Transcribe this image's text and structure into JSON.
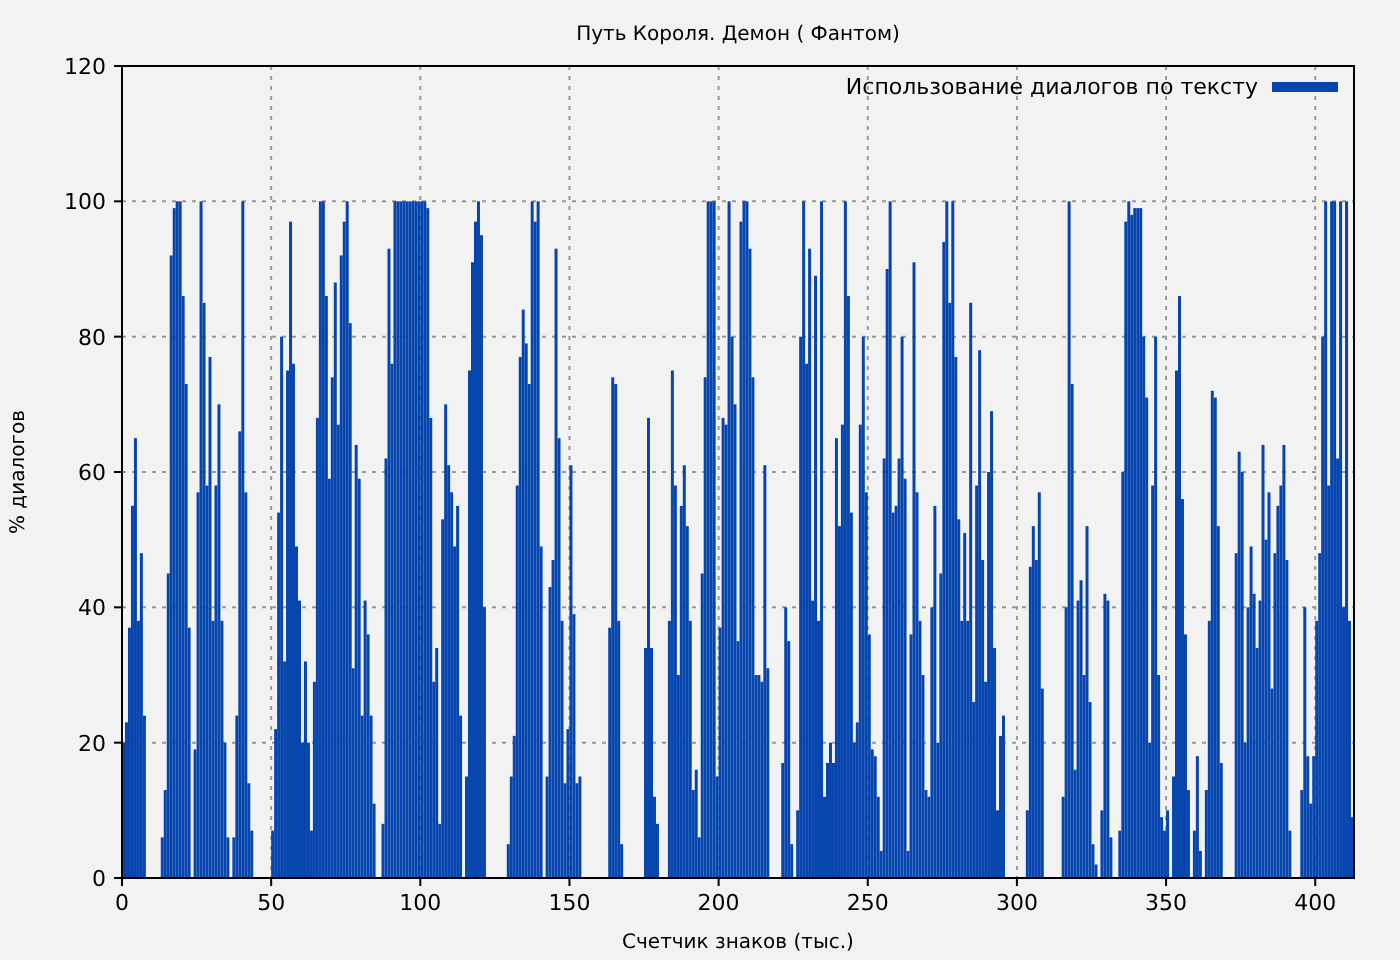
{
  "chart_data": {
    "type": "bar",
    "title": "Путь Короля. Демон ( Фантом)",
    "xlabel": "Счетчик знаков (тыс.)",
    "ylabel": "% диалогов",
    "x": [
      0,
      1,
      2,
      3,
      4,
      5,
      6,
      7,
      8,
      9,
      10,
      11,
      12,
      13,
      14,
      15,
      16,
      17,
      18,
      19,
      20,
      21,
      22,
      23,
      24,
      25,
      26,
      27,
      28,
      29,
      30,
      31,
      32,
      33,
      34,
      35,
      36,
      37,
      38,
      39,
      40,
      41,
      42,
      43,
      44,
      45,
      46,
      47,
      48,
      49,
      50,
      51,
      52,
      53,
      54,
      55,
      56,
      57,
      58,
      59,
      60,
      61,
      62,
      63,
      64,
      65,
      66,
      67,
      68,
      69,
      70,
      71,
      72,
      73,
      74,
      75,
      76,
      77,
      78,
      79,
      80,
      81,
      82,
      83,
      84,
      85,
      86,
      87,
      88,
      89,
      90,
      91,
      92,
      93,
      94,
      95,
      96,
      97,
      98,
      99,
      100,
      101,
      102,
      103,
      104,
      105,
      106,
      107,
      108,
      109,
      110,
      111,
      112,
      113,
      114,
      115,
      116,
      117,
      118,
      119,
      120,
      121,
      122,
      123,
      124,
      125,
      126,
      127,
      128,
      129,
      130,
      131,
      132,
      133,
      134,
      135,
      136,
      137,
      138,
      139,
      140,
      141,
      142,
      143,
      144,
      145,
      146,
      147,
      148,
      149,
      150,
      151,
      152,
      153,
      154,
      155,
      156,
      157,
      158,
      159,
      160,
      161,
      162,
      163,
      164,
      165,
      166,
      167,
      168,
      169,
      170,
      171,
      172,
      173,
      174,
      175,
      176,
      177,
      178,
      179,
      180,
      181,
      182,
      183,
      184,
      185,
      186,
      187,
      188,
      189,
      190,
      191,
      192,
      193,
      194,
      195,
      196,
      197,
      198,
      199,
      200,
      201,
      202,
      203,
      204,
      205,
      206,
      207,
      208,
      209,
      210,
      211,
      212,
      213,
      214,
      215,
      216,
      217,
      218,
      219,
      220,
      221,
      222,
      223,
      224,
      225,
      226,
      227,
      228,
      229,
      230,
      231,
      232,
      233,
      234,
      235,
      236,
      237,
      238,
      239,
      240,
      241,
      242,
      243,
      244,
      245,
      246,
      247,
      248,
      249,
      250,
      251,
      252,
      253,
      254,
      255,
      256,
      257,
      258,
      259,
      260,
      261,
      262,
      263,
      264,
      265,
      266,
      267,
      268,
      269,
      270,
      271,
      272,
      273,
      274,
      275,
      276,
      277,
      278,
      279,
      280,
      281,
      282,
      283,
      284,
      285,
      286,
      287,
      288,
      289,
      290,
      291,
      292,
      293,
      294,
      295,
      296,
      297,
      298,
      299,
      300,
      301,
      302,
      303,
      304,
      305,
      306,
      307,
      308,
      309,
      310,
      311,
      312,
      313,
      314,
      315,
      316,
      317,
      318,
      319,
      320,
      321,
      322,
      323,
      324,
      325,
      326,
      327,
      328,
      329,
      330,
      331,
      332,
      333,
      334,
      335,
      336,
      337,
      338,
      339,
      340,
      341,
      342,
      343,
      344,
      345,
      346,
      347,
      348,
      349,
      350,
      351,
      352,
      353,
      354,
      355,
      356,
      357,
      358,
      359,
      360,
      361,
      362,
      363,
      364,
      365,
      366,
      367,
      368,
      369,
      370,
      371,
      372,
      373,
      374,
      375,
      376,
      377,
      378,
      379,
      380,
      381,
      382,
      383,
      384,
      385,
      386,
      387,
      388,
      389,
      390,
      391,
      392,
      393,
      394,
      395,
      396,
      397,
      398,
      399,
      400,
      401,
      402,
      403,
      404,
      405,
      406,
      407,
      408,
      409,
      410,
      411,
      412
    ],
    "series": [
      {
        "name": "Использование диалогов по тексту",
        "color": "#0645ad",
        "values": [
          20,
          23,
          37,
          55,
          65,
          38,
          48,
          24,
          0,
          0,
          0,
          0,
          0,
          6,
          13,
          45,
          92,
          99,
          100,
          100,
          86,
          73,
          37,
          0,
          19,
          57,
          100,
          85,
          58,
          77,
          38,
          58,
          70,
          38,
          20,
          6,
          0,
          6,
          24,
          66,
          100,
          57,
          14,
          7,
          0,
          0,
          0,
          0,
          0,
          0,
          7,
          22,
          54,
          80,
          32,
          75,
          97,
          76,
          49,
          41,
          20,
          32,
          20,
          7,
          29,
          68,
          100,
          100,
          86,
          59,
          74,
          88,
          67,
          92,
          97,
          100,
          82,
          31,
          64,
          59,
          24,
          41,
          36,
          24,
          11,
          0,
          0,
          8,
          62,
          93,
          76,
          100,
          100,
          100,
          100,
          100,
          100,
          100,
          100,
          100,
          100,
          100,
          99,
          68,
          29,
          34,
          8,
          53,
          70,
          61,
          57,
          49,
          55,
          24,
          0,
          15,
          75,
          91,
          97,
          100,
          95,
          40,
          0,
          0,
          0,
          0,
          0,
          0,
          0,
          5,
          15,
          21,
          58,
          77,
          84,
          79,
          73,
          100,
          97,
          100,
          49,
          0,
          15,
          43,
          47,
          93,
          65,
          38,
          14,
          22,
          61,
          39,
          14,
          15,
          0,
          0,
          0,
          0,
          0,
          0,
          0,
          0,
          0,
          37,
          74,
          73,
          38,
          5,
          0,
          0,
          0,
          0,
          0,
          0,
          0,
          34,
          68,
          34,
          12,
          8,
          0,
          0,
          0,
          38,
          75,
          58,
          30,
          55,
          61,
          52,
          38,
          13,
          16,
          6,
          45,
          74,
          100,
          100,
          100,
          15,
          37,
          68,
          67,
          100,
          80,
          70,
          35,
          97,
          100,
          100,
          93,
          74,
          30,
          30,
          29,
          61,
          31,
          0,
          0,
          0,
          0,
          17,
          40,
          35,
          5,
          0,
          10,
          80,
          100,
          76,
          93,
          41,
          89,
          38,
          100,
          12,
          17,
          20,
          17,
          65,
          52,
          67,
          100,
          86,
          54,
          20,
          23,
          67,
          80,
          57,
          36,
          19,
          18,
          12,
          4,
          62,
          90,
          100,
          54,
          55,
          62,
          80,
          59,
          4,
          36,
          91,
          57,
          38,
          30,
          13,
          12,
          40,
          55,
          20,
          45,
          94,
          100,
          85,
          100,
          77,
          53,
          38,
          51,
          38,
          85,
          26,
          58,
          78,
          47,
          29,
          60,
          69,
          34,
          10,
          21,
          24,
          0,
          0,
          0,
          0,
          0,
          0,
          0,
          10,
          46,
          52,
          47,
          57,
          28,
          0,
          0,
          0,
          0,
          0,
          0,
          12,
          40,
          100,
          73,
          16,
          41,
          44,
          30,
          52,
          26,
          5,
          2,
          0,
          10,
          42,
          41,
          6,
          0,
          0,
          7,
          60,
          97,
          100,
          98,
          99,
          99,
          99,
          80,
          71,
          20,
          58,
          80,
          30,
          9,
          7,
          10,
          0,
          15,
          75,
          86,
          56,
          36,
          13,
          0,
          7,
          18,
          4,
          0,
          13,
          38,
          72,
          71,
          52,
          17,
          0,
          0,
          0,
          0,
          48,
          63,
          60,
          20,
          40,
          49,
          42,
          34,
          41,
          64,
          50,
          57,
          28,
          48,
          55,
          58,
          64,
          47,
          7,
          0,
          0,
          0,
          13,
          40,
          18,
          11,
          18,
          38,
          48,
          80,
          100,
          58,
          100,
          100,
          62,
          100,
          40,
          100,
          38,
          9
        ]
      }
    ],
    "xlim": [
      0,
      413
    ],
    "ylim": [
      0,
      120
    ],
    "xticks": [
      0,
      50,
      100,
      150,
      200,
      250,
      300,
      350,
      400
    ],
    "yticks": [
      0,
      20,
      40,
      60,
      80,
      100,
      120
    ],
    "grid": true,
    "legend": "top right"
  }
}
